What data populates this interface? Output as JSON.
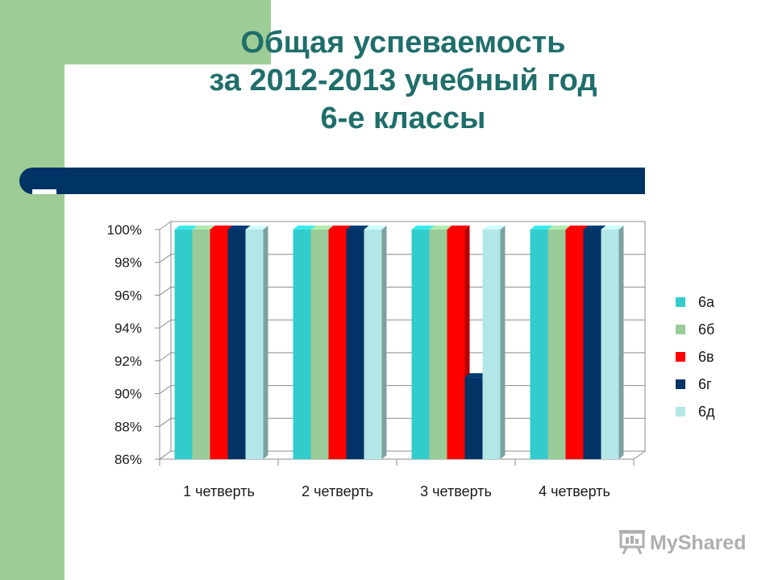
{
  "slide": {
    "title_lines": [
      "Общая успеваемость",
      "за 2012-2013 учебный год",
      "6-е классы"
    ]
  },
  "colors": {
    "background": "#ffffff",
    "accent_green": "#9dcc96",
    "title": "#1f6e6b",
    "rule_bar": "#003366"
  },
  "chart_data": {
    "type": "bar",
    "title": "",
    "xlabel": "",
    "ylabel": "",
    "categories": [
      "1 четверть",
      "2 четверть",
      "3 четверть",
      "4 четверть"
    ],
    "ylim": [
      0.86,
      1.0
    ],
    "yticks": [
      "86%",
      "88%",
      "90%",
      "92%",
      "94%",
      "96%",
      "98%",
      "100%"
    ],
    "grid": true,
    "legend_position": "right",
    "series": [
      {
        "name": "6а",
        "color": "#33cccc",
        "values": [
          1.0,
          1.0,
          1.0,
          1.0
        ]
      },
      {
        "name": "6б",
        "color": "#99cc99",
        "values": [
          1.0,
          1.0,
          1.0,
          1.0
        ]
      },
      {
        "name": "6в",
        "color": "#ff0000",
        "values": [
          1.0,
          1.0,
          1.0,
          1.0
        ]
      },
      {
        "name": "6г",
        "color": "#003366",
        "values": [
          1.0,
          1.0,
          0.91,
          1.0
        ]
      },
      {
        "name": "6д",
        "color": "#b3e6e6",
        "values": [
          1.0,
          1.0,
          1.0,
          1.0
        ]
      }
    ]
  },
  "logo": {
    "text": "MyShared",
    "icon": "presentation-board-icon"
  }
}
